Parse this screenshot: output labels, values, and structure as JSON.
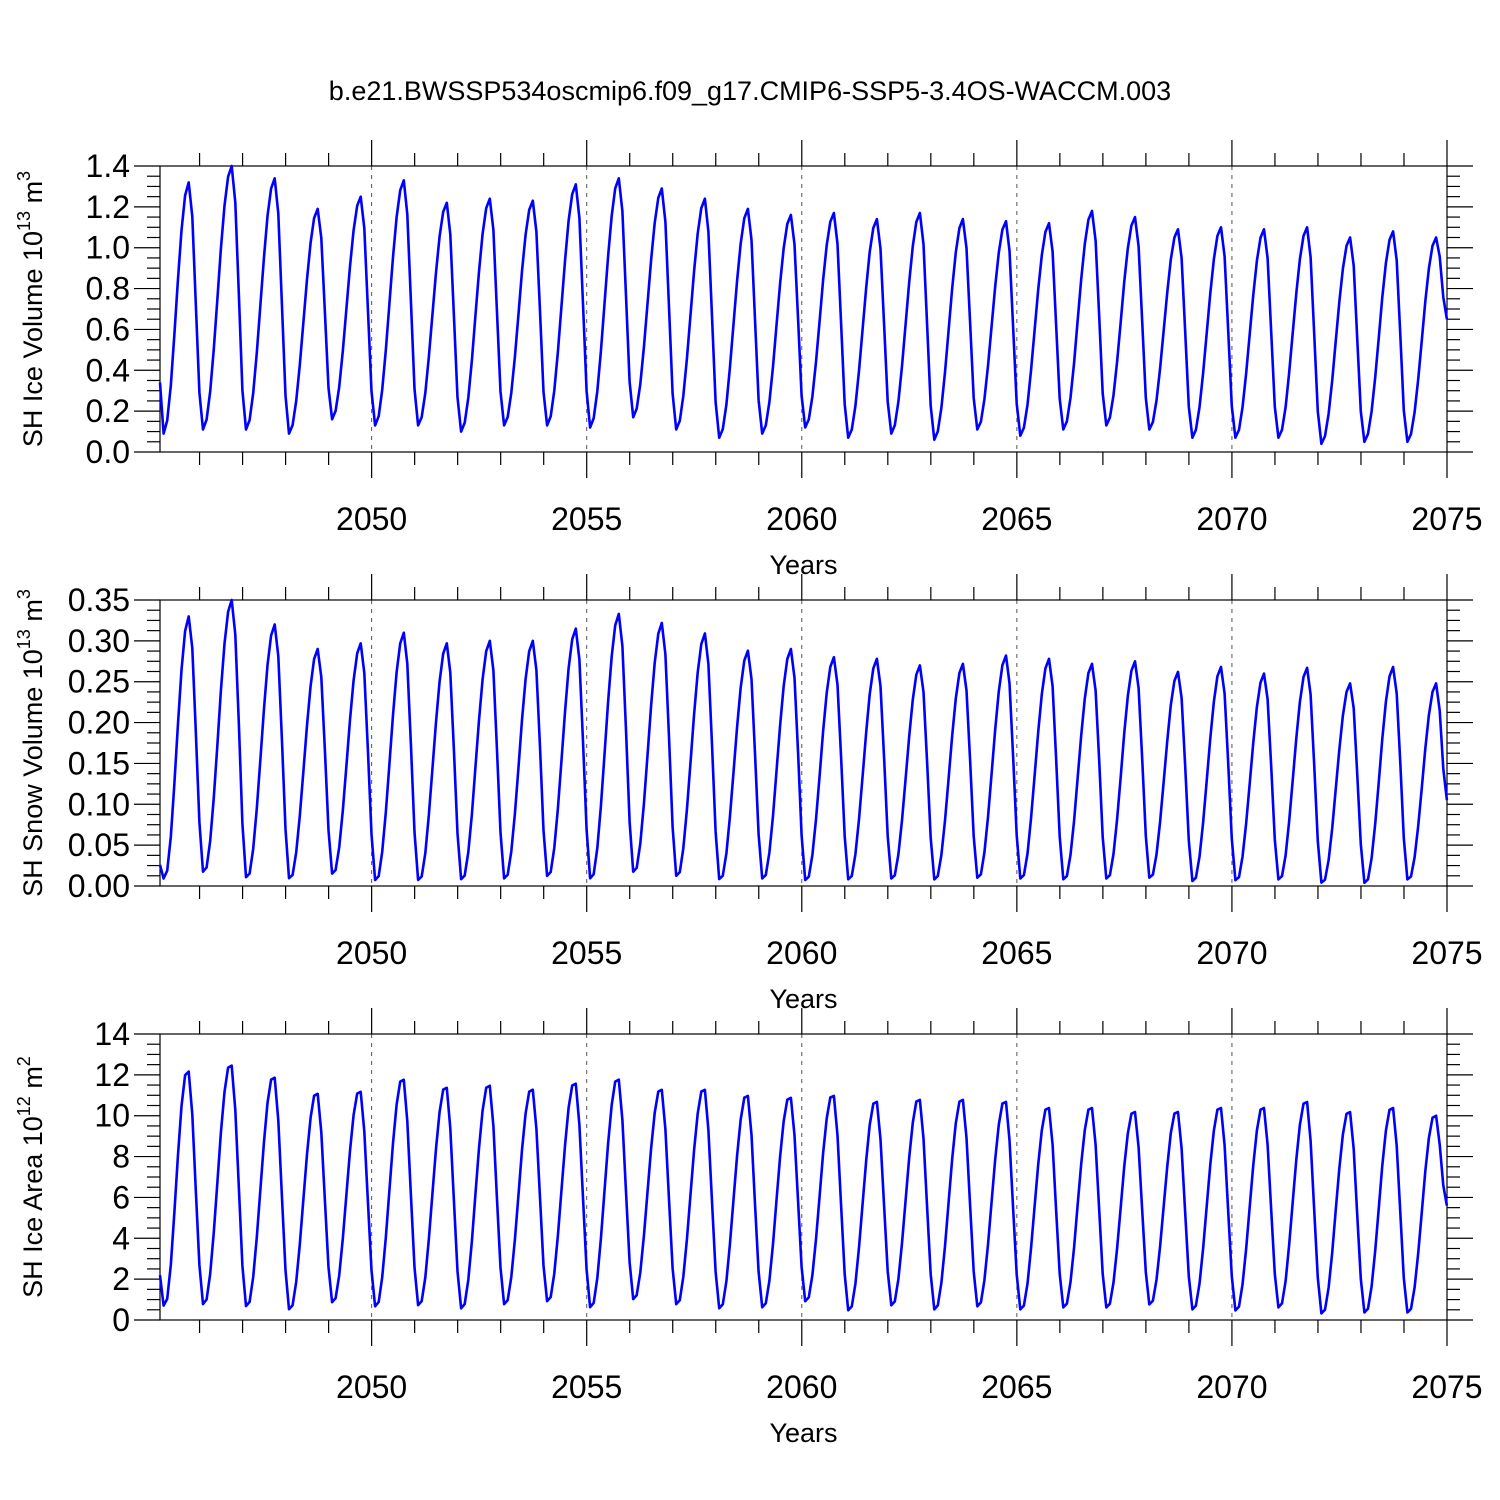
{
  "title": "b.e21.BWSSP534oscmip6.f09_g17.CMIP6-SSP5-3.4OS-WACCM.003",
  "chart_data": [
    {
      "type": "line",
      "id": "ice_volume",
      "ylabel": {
        "base": "SH Ice Volume 10",
        "exp1": "13",
        "mid": " m",
        "exp2": "3"
      },
      "xlabel": "Years",
      "xlim": [
        2045.08,
        2075.0
      ],
      "ylim": [
        0,
        1.4
      ],
      "yticks": [
        0.0,
        0.2,
        0.4,
        0.6,
        0.8,
        1.0,
        1.2,
        1.4
      ],
      "ytick_labels": [
        "0.0",
        "0.2",
        "0.4",
        "0.6",
        "0.8",
        "1.0",
        "1.2",
        "1.4"
      ],
      "ytick_minor": 0.05,
      "xticks": [
        2050,
        2055,
        2060,
        2065,
        2070,
        2075
      ],
      "xtick_labels": [
        "2050",
        "2055",
        "2060",
        "2065",
        "2070",
        "2075"
      ],
      "xtick_minor": 1,
      "grid_x": [
        2050,
        2055,
        2060,
        2065,
        2070
      ],
      "start": 2045.08,
      "end": 2075.0,
      "start_value": 0.34,
      "end_value": 0.65,
      "cycle_min_offset": 0.08,
      "cycle_max_offset": 0.75,
      "annual_min": [
        0.09,
        0.11,
        0.11,
        0.09,
        0.16,
        0.13,
        0.13,
        0.1,
        0.13,
        0.13,
        0.12,
        0.17,
        0.11,
        0.07,
        0.09,
        0.12,
        0.07,
        0.09,
        0.06,
        0.11,
        0.08,
        0.11,
        0.13,
        0.11,
        0.07,
        0.07,
        0.07,
        0.04,
        0.05,
        0.05
      ],
      "annual_max": [
        1.32,
        1.4,
        1.34,
        1.19,
        1.25,
        1.33,
        1.22,
        1.24,
        1.23,
        1.31,
        1.34,
        1.29,
        1.24,
        1.19,
        1.16,
        1.17,
        1.14,
        1.17,
        1.14,
        1.13,
        1.12,
        1.18,
        1.15,
        1.09,
        1.1,
        1.09,
        1.1,
        1.05,
        1.08,
        1.05
      ]
    },
    {
      "type": "line",
      "id": "snow_volume",
      "ylabel": {
        "base": "SH Snow Volume 10",
        "exp1": "13",
        "mid": " m",
        "exp2": "3"
      },
      "xlabel": "Years",
      "xlim": [
        2045.08,
        2075.0
      ],
      "ylim": [
        0,
        0.35
      ],
      "yticks": [
        0.0,
        0.05,
        0.1,
        0.15,
        0.2,
        0.25,
        0.3,
        0.35
      ],
      "ytick_labels": [
        "0.00",
        "0.05",
        "0.10",
        "0.15",
        "0.20",
        "0.25",
        "0.30",
        "0.35"
      ],
      "ytick_minor": 0.0125,
      "xticks": [
        2050,
        2055,
        2060,
        2065,
        2070,
        2075
      ],
      "xtick_labels": [
        "2050",
        "2055",
        "2060",
        "2065",
        "2070",
        "2075"
      ],
      "xtick_minor": 1,
      "grid_x": [
        2050,
        2055,
        2060,
        2065,
        2070
      ],
      "start": 2045.08,
      "end": 2075.0,
      "start_value": 0.026,
      "end_value": 0.105,
      "cycle_min_offset": 0.1,
      "cycle_max_offset": 0.75,
      "annual_min": [
        0.008,
        0.015,
        0.008,
        0.007,
        0.013,
        0.005,
        0.005,
        0.006,
        0.007,
        0.01,
        0.007,
        0.015,
        0.01,
        0.006,
        0.007,
        0.005,
        0.006,
        0.007,
        0.006,
        0.008,
        0.007,
        0.006,
        0.007,
        0.008,
        0.004,
        0.005,
        0.006,
        0.002,
        0.002,
        0.006
      ],
      "annual_max": [
        0.33,
        0.35,
        0.32,
        0.29,
        0.297,
        0.31,
        0.297,
        0.3,
        0.3,
        0.315,
        0.333,
        0.322,
        0.309,
        0.288,
        0.29,
        0.28,
        0.278,
        0.27,
        0.272,
        0.282,
        0.278,
        0.272,
        0.275,
        0.262,
        0.268,
        0.26,
        0.267,
        0.248,
        0.268,
        0.248
      ]
    },
    {
      "type": "line",
      "id": "ice_area",
      "ylabel": {
        "base": "SH Ice Area 10",
        "exp1": "12",
        "mid": " m",
        "exp2": "2"
      },
      "xlabel": "Years",
      "xlim": [
        2045.08,
        2075.0
      ],
      "ylim": [
        0,
        14
      ],
      "yticks": [
        0,
        2,
        4,
        6,
        8,
        10,
        12,
        14
      ],
      "ytick_labels": [
        "0",
        "2",
        "4",
        "6",
        "8",
        "10",
        "12",
        "14"
      ],
      "ytick_minor": 0.5,
      "xticks": [
        2050,
        2055,
        2060,
        2065,
        2070,
        2075
      ],
      "xtick_labels": [
        "2050",
        "2055",
        "2060",
        "2065",
        "2070",
        "2075"
      ],
      "xtick_minor": 1,
      "grid_x": [
        2050,
        2055,
        2060,
        2065,
        2070
      ],
      "start": 2045.08,
      "end": 2075.0,
      "start_value": 2.2,
      "end_value": 5.6,
      "cycle_min_offset": 0.1,
      "cycle_max_offset": 0.72,
      "annual_min": [
        0.6,
        0.7,
        0.6,
        0.45,
        0.8,
        0.6,
        0.65,
        0.5,
        0.7,
        0.85,
        0.55,
        0.95,
        0.7,
        0.5,
        0.55,
        0.85,
        0.4,
        0.65,
        0.45,
        0.6,
        0.45,
        0.55,
        0.55,
        0.7,
        0.45,
        0.4,
        0.55,
        0.25,
        0.3,
        0.3
      ],
      "annual_max": [
        12.3,
        12.6,
        12.0,
        11.2,
        11.3,
        11.9,
        11.5,
        11.6,
        11.4,
        11.7,
        11.9,
        11.4,
        11.4,
        11.1,
        11.0,
        11.1,
        10.8,
        10.9,
        10.9,
        10.8,
        10.5,
        10.5,
        10.3,
        10.3,
        10.5,
        10.5,
        10.8,
        10.3,
        10.5,
        10.1
      ]
    }
  ]
}
